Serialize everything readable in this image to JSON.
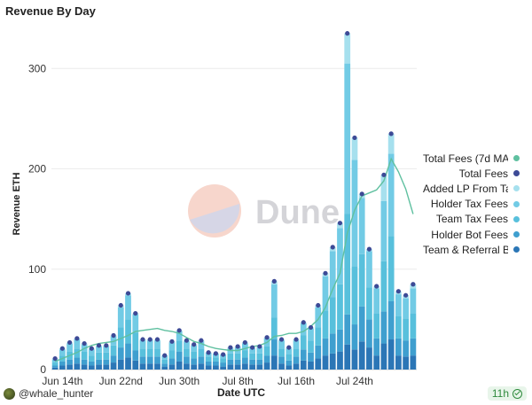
{
  "title": "Revenue By Day",
  "footer": {
    "user": "@whale_hunter",
    "age": "11h"
  },
  "watermark": {
    "text": "Dune"
  },
  "colors": {
    "ma": "#5fc0a0",
    "total": "#3d4a96",
    "added_lp": "#a6e0ee",
    "holder_tax": "#72cbe5",
    "team_tax": "#58c0dc",
    "holder_bot": "#3f9fcf",
    "team_referral": "#2b76b6"
  },
  "chart_data": {
    "type": "bar",
    "title": "Revenue By Day",
    "xlabel": "Date UTC",
    "ylabel": "Revenue ETH",
    "ylim": [
      0,
      340
    ],
    "yticks": [
      0,
      100,
      200,
      300
    ],
    "xtick_labels": [
      "Jun 14th",
      "Jun 22nd",
      "Jun 30th",
      "Jul 8th",
      "Jul 16th",
      "Jul 24th"
    ],
    "xtick_index": [
      1,
      9,
      17,
      25,
      33,
      41
    ],
    "categories": [
      "Jun 13",
      "Jun 14",
      "Jun 15",
      "Jun 16",
      "Jun 17",
      "Jun 18",
      "Jun 19",
      "Jun 20",
      "Jun 21",
      "Jun 22",
      "Jun 23",
      "Jun 24",
      "Jun 25",
      "Jun 26",
      "Jun 27",
      "Jun 28",
      "Jun 29",
      "Jun 30",
      "Jul 1",
      "Jul 2",
      "Jul 3",
      "Jul 4",
      "Jul 5",
      "Jul 6",
      "Jul 7",
      "Jul 8",
      "Jul 9",
      "Jul 10",
      "Jul 11",
      "Jul 12",
      "Jul 13",
      "Jul 14",
      "Jul 15",
      "Jul 16",
      "Jul 17",
      "Jul 18",
      "Jul 19",
      "Jul 20",
      "Jul 21",
      "Jul 22",
      "Jul 23",
      "Jul 24",
      "Jul 25",
      "Jul 26",
      "Jul 27",
      "Jul 28",
      "Jul 29",
      "Jul 30",
      "Jul 31",
      "Aug 1"
    ],
    "legend": [
      "Total Fees (7d MA)",
      "Total Fees",
      "Added LP From Ta",
      "Holder Tax Fees",
      "Team Tax Fees",
      "Holder Bot Fees",
      "Team & Referral B"
    ],
    "legend_position": "right",
    "grid": true,
    "series": [
      {
        "name": "Team & Referral B",
        "values": [
          2,
          4,
          5,
          6,
          5,
          4,
          5,
          5,
          7,
          10,
          12,
          9,
          6,
          6,
          6,
          3,
          5,
          8,
          6,
          5,
          6,
          4,
          4,
          3,
          5,
          5,
          6,
          5,
          5,
          7,
          14,
          6,
          4,
          6,
          9,
          8,
          11,
          14,
          16,
          18,
          25,
          20,
          28,
          22,
          14,
          26,
          30,
          14,
          13,
          14
        ]
      },
      {
        "name": "Holder Bot Fees",
        "values": [
          2,
          4,
          5,
          6,
          5,
          4,
          5,
          5,
          7,
          12,
          14,
          10,
          7,
          7,
          7,
          3,
          6,
          10,
          7,
          6,
          7,
          4,
          4,
          4,
          5,
          5,
          6,
          5,
          5,
          7,
          16,
          7,
          5,
          7,
          11,
          9,
          13,
          17,
          20,
          22,
          30,
          25,
          35,
          28,
          17,
          32,
          38,
          17,
          16,
          17
        ]
      },
      {
        "name": "Team Tax Fees",
        "values": [
          3,
          6,
          8,
          9,
          8,
          6,
          7,
          7,
          10,
          20,
          24,
          18,
          8,
          8,
          8,
          4,
          8,
          11,
          8,
          7,
          8,
          5,
          4,
          4,
          6,
          6,
          7,
          6,
          6,
          9,
          22,
          8,
          6,
          8,
          14,
          12,
          18,
          28,
          36,
          45,
          100,
          58,
          52,
          32,
          25,
          50,
          65,
          22,
          22,
          25
        ]
      },
      {
        "name": "Holder Tax Fees",
        "values": [
          3,
          6,
          8,
          9,
          7,
          6,
          6,
          6,
          9,
          20,
          24,
          18,
          8,
          8,
          8,
          4,
          8,
          9,
          7,
          6,
          7,
          4,
          4,
          4,
          5,
          6,
          7,
          5,
          6,
          8,
          33,
          8,
          6,
          8,
          12,
          12,
          20,
          34,
          46,
          56,
          150,
          106,
          56,
          36,
          25,
          60,
          82,
          22,
          20,
          25
        ]
      },
      {
        "name": "Added LP From Ta",
        "values": [
          1,
          1,
          1,
          1,
          1,
          1,
          1,
          1,
          1,
          2,
          2,
          1,
          1,
          1,
          1,
          0,
          1,
          1,
          1,
          1,
          1,
          0,
          0,
          0,
          1,
          1,
          1,
          1,
          1,
          1,
          3,
          1,
          1,
          1,
          1,
          1,
          2,
          3,
          4,
          5,
          30,
          22,
          4,
          2,
          2,
          26,
          20,
          3,
          3,
          4
        ]
      },
      {
        "name": "Total Fees",
        "values": [
          11,
          21,
          27,
          31,
          26,
          21,
          24,
          24,
          34,
          64,
          76,
          56,
          30,
          30,
          30,
          14,
          28,
          39,
          29,
          25,
          29,
          17,
          16,
          15,
          22,
          23,
          27,
          22,
          23,
          32,
          88,
          30,
          22,
          30,
          47,
          42,
          64,
          96,
          122,
          146,
          335,
          231,
          175,
          120,
          83,
          194,
          235,
          78,
          74,
          85
        ]
      },
      {
        "name": "Total Fees (7d MA)",
        "values": [
          8,
          11,
          14,
          17,
          21,
          24,
          26,
          27,
          28,
          31,
          34,
          38,
          39,
          40,
          41,
          39,
          38,
          36,
          32,
          28,
          26,
          23,
          21,
          20,
          19,
          19,
          21,
          23,
          24,
          27,
          33,
          34,
          36,
          36,
          38,
          43,
          50,
          62,
          80,
          96,
          136,
          159,
          173,
          176,
          179,
          188,
          210,
          197,
          180,
          155
        ]
      }
    ],
    "points": [
      {
        "x": "Jun 13",
        "y": 11
      },
      {
        "x": "Jun 14",
        "y": 21
      },
      {
        "x": "Jun 15",
        "y": 27
      },
      {
        "x": "Jun 16",
        "y": 31
      },
      {
        "x": "Jun 17",
        "y": 26
      },
      {
        "x": "Jun 18",
        "y": 21
      },
      {
        "x": "Jun 19",
        "y": 24
      },
      {
        "x": "Jun 20",
        "y": 24
      },
      {
        "x": "Jun 21",
        "y": 34
      },
      {
        "x": "Jun 22",
        "y": 64
      },
      {
        "x": "Jun 23",
        "y": 76
      },
      {
        "x": "Jun 24",
        "y": 56
      },
      {
        "x": "Jun 25",
        "y": 30
      },
      {
        "x": "Jun 26",
        "y": 30
      },
      {
        "x": "Jun 27",
        "y": 30
      },
      {
        "x": "Jun 28",
        "y": 14
      },
      {
        "x": "Jun 29",
        "y": 28
      },
      {
        "x": "Jun 30",
        "y": 39
      },
      {
        "x": "Jul 1",
        "y": 29
      },
      {
        "x": "Jul 2",
        "y": 25
      },
      {
        "x": "Jul 3",
        "y": 29
      },
      {
        "x": "Jul 4",
        "y": 17
      },
      {
        "x": "Jul 5",
        "y": 16
      },
      {
        "x": "Jul 6",
        "y": 15
      },
      {
        "x": "Jul 7",
        "y": 22
      },
      {
        "x": "Jul 8",
        "y": 23
      },
      {
        "x": "Jul 9",
        "y": 27
      },
      {
        "x": "Jul 10",
        "y": 22
      },
      {
        "x": "Jul 11",
        "y": 23
      },
      {
        "x": "Jul 12",
        "y": 32
      },
      {
        "x": "Jul 13",
        "y": 88
      },
      {
        "x": "Jul 14",
        "y": 30
      },
      {
        "x": "Jul 15",
        "y": 22
      },
      {
        "x": "Jul 16",
        "y": 30
      },
      {
        "x": "Jul 17",
        "y": 47
      },
      {
        "x": "Jul 18",
        "y": 42
      },
      {
        "x": "Jul 19",
        "y": 64
      },
      {
        "x": "Jul 20",
        "y": 96
      },
      {
        "x": "Jul 21",
        "y": 122
      },
      {
        "x": "Jul 22",
        "y": 146
      },
      {
        "x": "Jul 23",
        "y": 335
      },
      {
        "x": "Jul 24",
        "y": 231
      },
      {
        "x": "Jul 25",
        "y": 175
      },
      {
        "x": "Jul 26",
        "y": 120
      },
      {
        "x": "Jul 27",
        "y": 83
      },
      {
        "x": "Jul 28",
        "y": 194
      },
      {
        "x": "Jul 29",
        "y": 235
      },
      {
        "x": "Jul 30",
        "y": 78
      },
      {
        "x": "Jul 31",
        "y": 74
      },
      {
        "x": "Aug 1",
        "y": 85
      }
    ]
  }
}
